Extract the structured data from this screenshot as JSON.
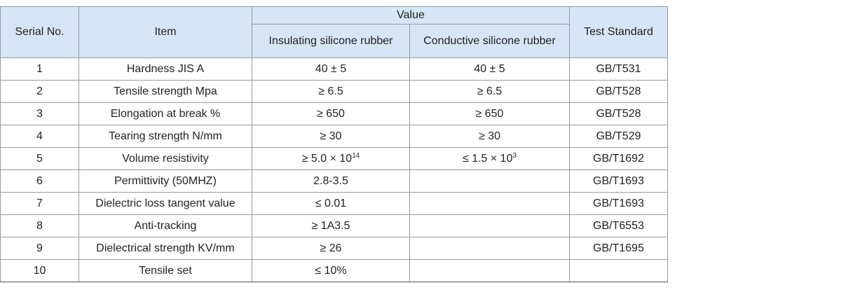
{
  "table": {
    "headers": {
      "serial": "Serial No.",
      "item": "Item",
      "value": "Value",
      "insulating": "Insulating silicone rubber",
      "conductive": "Conductive silicone rubber",
      "standard": "Test Standard"
    },
    "rows": [
      {
        "serial": 1,
        "item": "Hardness JIS A",
        "insulating": "40 ± 5",
        "conductive": "40 ± 5",
        "standard": "GB/T531"
      },
      {
        "serial": 2,
        "item": "Tensile strength Mpa",
        "insulating": "≥ 6.5",
        "conductive": "≥ 6.5",
        "standard": "GB/T528"
      },
      {
        "serial": 3,
        "item": "Elongation at break %",
        "insulating": "≥ 650",
        "conductive": "≥ 650",
        "standard": "GB/T528"
      },
      {
        "serial": 4,
        "item": "Tearing strength N/mm",
        "insulating": "≥ 30",
        "conductive": "≥ 30",
        "standard": "GB/T529"
      },
      {
        "serial": 5,
        "item": "Volume resistivity",
        "insulating": {
          "base": "≥ 5.0 × 10",
          "sup": "14"
        },
        "conductive": {
          "base": "≤ 1.5 × 10",
          "sup": "3"
        },
        "standard": "GB/T1692"
      },
      {
        "serial": 6,
        "item": "Permittivity (50MHZ)",
        "insulating": "2.8-3.5",
        "standard": "GB/T1693"
      },
      {
        "serial": 7,
        "item": "Dielectric loss tangent value",
        "insulating": "≤ 0.01",
        "standard": "GB/T1693"
      },
      {
        "serial": 8,
        "item": "Anti-tracking",
        "insulating": "≥ 1A3.5",
        "standard": "GB/T6553"
      },
      {
        "serial": 9,
        "item": "Dielectrical strength KV/mm",
        "insulating": "≥ 26",
        "standard": "GB/T1695"
      },
      {
        "serial": 10,
        "item": "Tensile set",
        "insulating": "≤ 10%"
      }
    ]
  }
}
